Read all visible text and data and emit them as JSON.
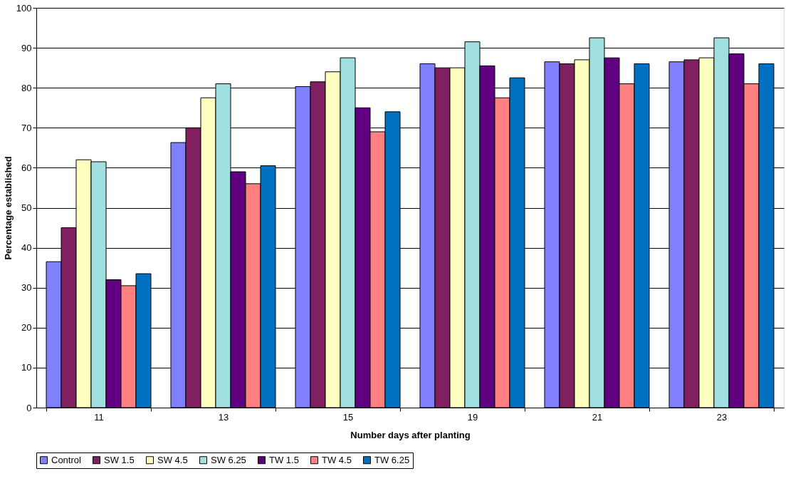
{
  "chart_data": {
    "type": "bar",
    "xlabel": "Number days after planting",
    "ylabel": "Percentage established",
    "categories": [
      "11",
      "13",
      "15",
      "19",
      "21",
      "23"
    ],
    "series": [
      {
        "name": "Control",
        "color": "#8080ff",
        "values": [
          36.5,
          66.3,
          80.3,
          86,
          86.5,
          86.5
        ]
      },
      {
        "name": "SW 1.5",
        "color": "#802060",
        "values": [
          45,
          70,
          81.5,
          85,
          86,
          87
        ]
      },
      {
        "name": "SW 4.5",
        "color": "#ffffc0",
        "values": [
          62,
          77.5,
          84,
          85,
          87,
          87.5
        ]
      },
      {
        "name": "SW 6.25",
        "color": "#a0e0e0",
        "values": [
          61.5,
          81,
          87.5,
          91.5,
          92.5,
          92.5
        ]
      },
      {
        "name": "TW 1.5",
        "color": "#600080",
        "values": [
          32,
          59,
          75,
          85.5,
          87.5,
          88.5
        ]
      },
      {
        "name": "TW 4.5",
        "color": "#ff8080",
        "values": [
          30.5,
          56,
          69,
          77.5,
          81,
          81
        ]
      },
      {
        "name": "TW 6.25",
        "color": "#0070c0",
        "values": [
          33.5,
          60.5,
          74,
          82.5,
          86,
          86
        ]
      }
    ],
    "ylim": [
      0,
      100
    ],
    "yticks": [
      0,
      10,
      20,
      30,
      40,
      50,
      60,
      70,
      80,
      90,
      100
    ],
    "grid": "y",
    "legend": "bottom"
  }
}
